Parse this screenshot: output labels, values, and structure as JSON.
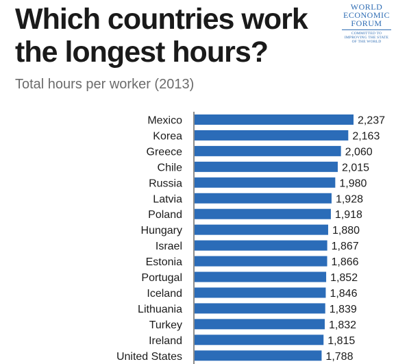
{
  "header": {
    "title": "Which countries work the longest hours?",
    "subtitle": "Total hours per worker (2013)"
  },
  "logo": {
    "name": "WORLD\nECONOMIC\nFORUM",
    "tagline": "COMMITTED TO\nIMPROVING THE STATE\nOF THE WORLD"
  },
  "colors": {
    "bar": "#2b6cb8",
    "axis": "#1a1a1a",
    "logo": "#2c6bb3"
  },
  "chart_data": {
    "type": "bar",
    "orientation": "horizontal",
    "title": "Which countries work the longest hours?",
    "subtitle": "Total hours per worker (2013)",
    "categories": [
      "Mexico",
      "Korea",
      "Greece",
      "Chile",
      "Russia",
      "Latvia",
      "Poland",
      "Hungary",
      "Israel",
      "Estonia",
      "Portugal",
      "Iceland",
      "Lithuania",
      "Turkey",
      "Ireland",
      "United States"
    ],
    "values": [
      2237,
      2163,
      2060,
      2015,
      1980,
      1928,
      1918,
      1880,
      1867,
      1866,
      1852,
      1846,
      1839,
      1832,
      1815,
      1788
    ],
    "value_labels": [
      "2,237",
      "2,163",
      "2,060",
      "2,015",
      "1,980",
      "1,928",
      "1,918",
      "1,880",
      "1,867",
      "1,866",
      "1,852",
      "1,846",
      "1,839",
      "1,832",
      "1,815",
      "1,788"
    ],
    "xlim": [
      0,
      2237
    ],
    "grid": false,
    "legend": "none"
  }
}
